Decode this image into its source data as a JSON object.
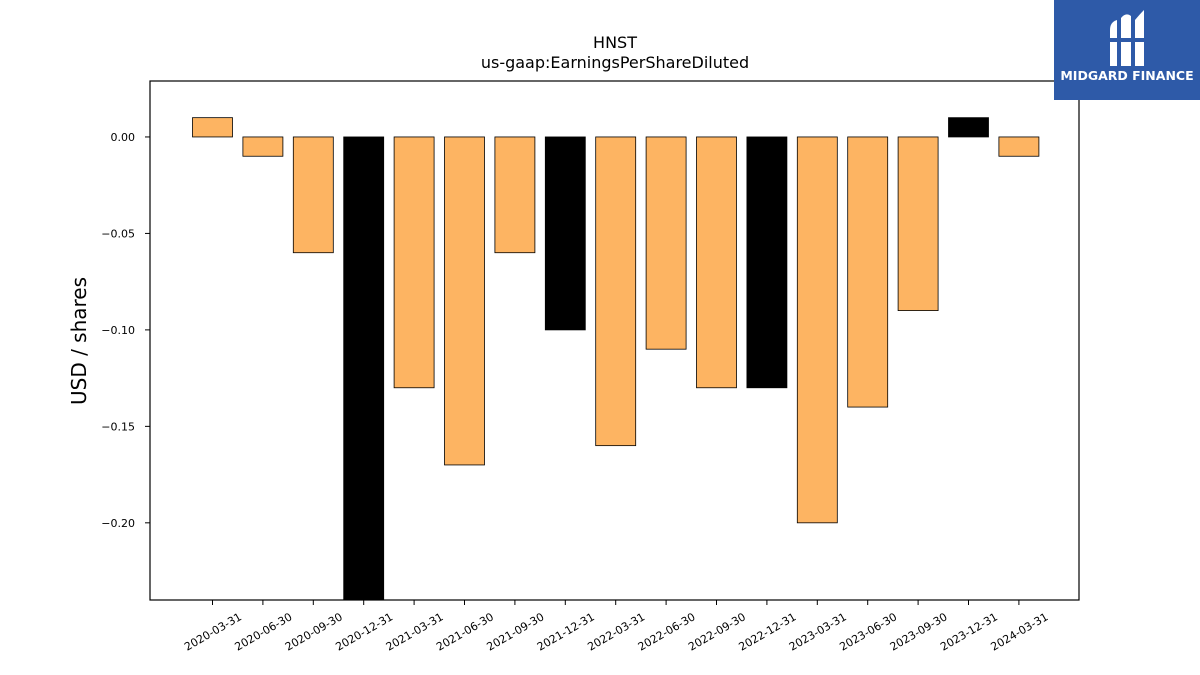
{
  "chart_data": {
    "type": "bar",
    "title": "HNST",
    "subtitle": "us-gaap:EarningsPerShareDiluted",
    "xlabel": "",
    "ylabel": "USD / shares",
    "ylim": [
      -0.24,
      0.029
    ],
    "yticks": [
      0.0,
      -0.05,
      -0.1,
      -0.15,
      -0.2
    ],
    "ytick_labels": [
      "0.00",
      "−0.05",
      "−0.10",
      "−0.15",
      "−0.20"
    ],
    "categories": [
      "2020-03-31",
      "2020-06-30",
      "2020-09-30",
      "2020-12-31",
      "2021-03-31",
      "2021-06-30",
      "2021-09-30",
      "2021-12-31",
      "2022-03-31",
      "2022-06-30",
      "2022-09-30",
      "2022-12-31",
      "2023-03-31",
      "2023-06-30",
      "2023-09-30",
      "2023-12-31",
      "2024-03-31"
    ],
    "values": [
      0.01,
      -0.01,
      -0.06,
      -0.25,
      -0.13,
      -0.17,
      -0.06,
      -0.1,
      -0.16,
      -0.11,
      -0.13,
      -0.13,
      -0.2,
      -0.14,
      -0.09,
      0.01,
      -0.01
    ],
    "highlight": [
      false,
      false,
      false,
      true,
      false,
      false,
      false,
      true,
      false,
      false,
      false,
      true,
      false,
      false,
      false,
      true,
      false
    ],
    "colors": {
      "bar": "#fdb462",
      "highlight": "#000000",
      "edge": "#000000"
    },
    "grid": false
  },
  "logo": {
    "text": "MIDGARD FINANCE",
    "background": "#2e5aa8"
  }
}
